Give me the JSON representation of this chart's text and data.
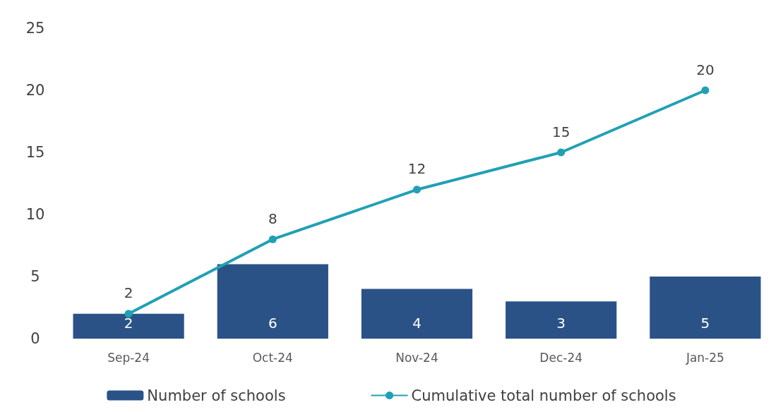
{
  "chart_data": {
    "type": "bar",
    "categories": [
      "Sep-24",
      "Oct-24",
      "Nov-24",
      "Dec-24",
      "Jan-25"
    ],
    "series": [
      {
        "name": "Number of schools",
        "color": "#2a5286",
        "values": [
          2,
          6,
          4,
          3,
          5
        ]
      },
      {
        "name": "Cumulative total number of schools",
        "type": "line",
        "color": "#21a0b4",
        "values": [
          2,
          8,
          12,
          15,
          20
        ]
      }
    ],
    "ylim": [
      0,
      25
    ],
    "yticks": [
      0,
      5,
      10,
      15,
      20,
      25
    ],
    "grid": false,
    "legend": "bottom",
    "data_labels": true,
    "marker": "circle",
    "line_style": "solid"
  }
}
